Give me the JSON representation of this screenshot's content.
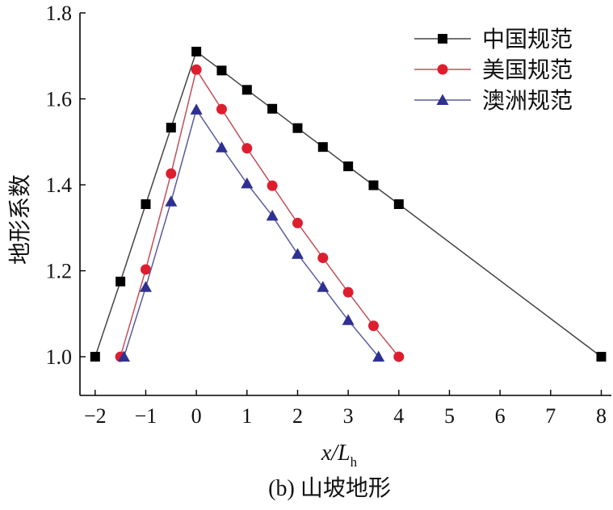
{
  "chart_data": {
    "type": "line",
    "xlabel": "x/L",
    "xlabel_sub": "h",
    "ylabel": "地形系数",
    "caption": "(b) 山坡地形",
    "xlim": [
      -2.3,
      8.2
    ],
    "ylim": [
      0.91,
      1.8
    ],
    "xticks": [
      -2,
      -1,
      0,
      1,
      2,
      3,
      4,
      5,
      6,
      7,
      8
    ],
    "xtick_labels": [
      "−2",
      "−1",
      "0",
      "1",
      "2",
      "3",
      "4",
      "5",
      "6",
      "7",
      "8"
    ],
    "yticks": [
      1.0,
      1.2,
      1.4,
      1.6,
      1.8
    ],
    "ytick_labels": [
      "1.0",
      "1.2",
      "1.4",
      "1.6",
      "1.8"
    ],
    "grid": false,
    "legend": "top-right",
    "series": [
      {
        "name": "中国规范",
        "marker": "square",
        "line_color": "#444444",
        "marker_color": "#000000",
        "points": [
          [
            -2.0,
            1.0
          ],
          [
            -1.5,
            1.175
          ],
          [
            -1.0,
            1.355
          ],
          [
            -0.5,
            1.533
          ],
          [
            0.0,
            1.71
          ],
          [
            0.5,
            1.666
          ],
          [
            1.0,
            1.621
          ],
          [
            1.5,
            1.577
          ],
          [
            2.0,
            1.532
          ],
          [
            2.5,
            1.488
          ],
          [
            3.0,
            1.443
          ],
          [
            3.5,
            1.399
          ],
          [
            4.0,
            1.355
          ],
          [
            8.0,
            1.0
          ]
        ]
      },
      {
        "name": "美国规范",
        "marker": "circle",
        "line_color": "#c0505a",
        "marker_color": "#dd1e2f",
        "points": [
          [
            -1.5,
            1.0
          ],
          [
            -1.0,
            1.203
          ],
          [
            -0.5,
            1.426
          ],
          [
            0.0,
            1.668
          ],
          [
            0.5,
            1.576
          ],
          [
            1.0,
            1.485
          ],
          [
            1.5,
            1.398
          ],
          [
            2.0,
            1.311
          ],
          [
            2.5,
            1.23
          ],
          [
            3.0,
            1.15
          ],
          [
            3.5,
            1.072
          ],
          [
            4.0,
            1.0
          ]
        ]
      },
      {
        "name": "澳洲规范",
        "marker": "triangle",
        "line_color": "#5a5a9e",
        "marker_color": "#2e3192",
        "points": [
          [
            -1.43,
            1.0
          ],
          [
            -1.0,
            1.162
          ],
          [
            -0.5,
            1.361
          ],
          [
            0.0,
            1.575
          ],
          [
            0.5,
            1.487
          ],
          [
            1.0,
            1.403
          ],
          [
            1.5,
            1.328
          ],
          [
            2.0,
            1.239
          ],
          [
            2.5,
            1.162
          ],
          [
            3.0,
            1.085
          ],
          [
            3.6,
            1.0
          ]
        ]
      }
    ]
  }
}
